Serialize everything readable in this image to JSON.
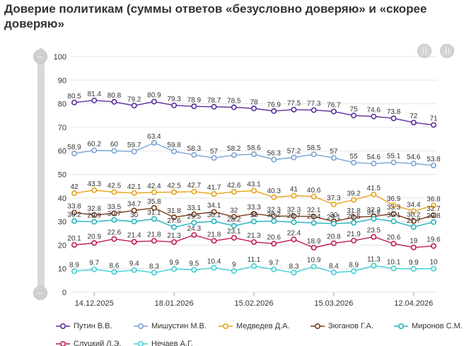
{
  "title": "Доверие политикам (суммы ответов «безусловно доверяю» и «скорее доверяю»",
  "chart_data": {
    "type": "line",
    "title": "Доверие политикам (суммы ответов «безусловно доверяю» и «скорее доверяю»",
    "ylim": [
      0,
      100
    ],
    "yticks": [
      0,
      10,
      20,
      30,
      40,
      50,
      60,
      70,
      80,
      90,
      100
    ],
    "grid": true,
    "legend_position": "bottom",
    "x_tick_labels": [
      "14.12.2025",
      "18.01.2026",
      "15.02.2026",
      "15.03.2026",
      "12.04.2026"
    ],
    "series": [
      {
        "name": "Путин В.В.",
        "color": "#5b2d9e",
        "values": [
          80.5,
          81.4,
          80.8,
          79.2,
          80.9,
          79.3,
          78.9,
          78.7,
          78.5,
          78,
          76.9,
          77.5,
          77.3,
          76.7,
          75,
          74.6,
          73.8,
          72,
          71
        ]
      },
      {
        "name": "Мишустин М.В.",
        "color": "#7aa3d4",
        "values": [
          58.9,
          60.2,
          60,
          59.7,
          63.4,
          59.8,
          58.3,
          57,
          58.2,
          58.6,
          56.3,
          57.2,
          58.5,
          57,
          55,
          54.6,
          55.1,
          54.6,
          53.8
        ]
      },
      {
        "name": "Медведев Д.А.",
        "color": "#e8a317",
        "values": [
          42,
          43.3,
          42.5,
          42.1,
          42.4,
          42.5,
          42.7,
          41.7,
          42.6,
          43.1,
          40.3,
          41,
          40.6,
          37.3,
          39.2,
          41.5,
          36.9,
          34.4,
          36.8
        ]
      },
      {
        "name": "Зюганов Г.А.",
        "color": "#7a3a1a",
        "values": [
          33.8,
          32.8,
          33.5,
          34.7,
          35.8,
          31.8,
          33.1,
          34.1,
          32,
          33.3,
          32.3,
          32.3,
          32.1,
          30,
          31.8,
          32.2,
          33.3,
          30.2,
          32.7
        ]
      },
      {
        "name": "Миронов С.М.",
        "color": "#22b5c0",
        "values": [
          30.2,
          29.9,
          30.7,
          30,
          31.1,
          27.6,
          29.5,
          30.1,
          28.2,
          30,
          30.2,
          29.7,
          29.4,
          29.1,
          29.5,
          31.2,
          30.1,
          27.7,
          29.8
        ]
      },
      {
        "name": "Слуцкий Л.Э.",
        "color": "#c2185b",
        "values": [
          20.1,
          20.9,
          22.6,
          21.4,
          21.8,
          21.3,
          24.3,
          21.8,
          23.1,
          21.3,
          20.6,
          22.4,
          18.9,
          20.8,
          21.9,
          23.5,
          20.6,
          19,
          19.6
        ]
      },
      {
        "name": "Нечаев А.Г.",
        "color": "#3fd0d8",
        "values": [
          8.9,
          9.7,
          8.6,
          9.4,
          8.3,
          9.9,
          9.5,
          10.4,
          9,
          11.1,
          9.7,
          8.3,
          10.9,
          8.4,
          8.9,
          11.3,
          10.1,
          9.9,
          10
        ]
      }
    ]
  }
}
